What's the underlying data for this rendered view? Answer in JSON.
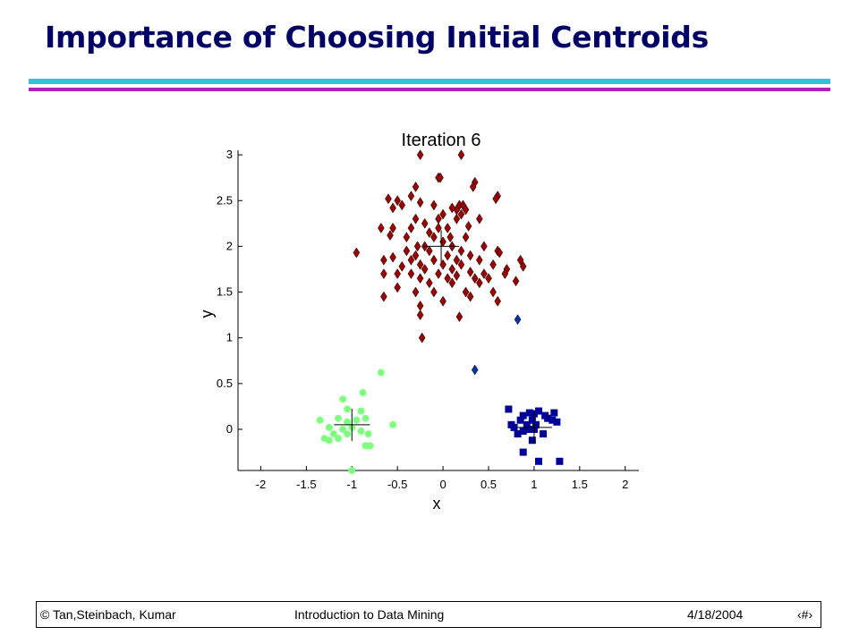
{
  "slide": {
    "title": "Importance of Choosing Initial Centroids"
  },
  "footer": {
    "left": "© Tan,Steinbach, Kumar",
    "center": "Introduction to Data Mining",
    "date": "4/18/2004",
    "page": "‹#›"
  },
  "colors": {
    "title": "#000066",
    "accent_bar_top": "#33c0e0",
    "accent_bar_bottom": "#b01ec0",
    "cluster_red": "#990000",
    "cluster_green": "#80ff80",
    "cluster_blue": "#000099"
  },
  "chart_data": {
    "type": "scatter",
    "title": "Iteration 6",
    "xlabel": "x",
    "ylabel": "y",
    "xlim": [
      -2.25,
      2.15
    ],
    "ylim": [
      -0.45,
      3.05
    ],
    "xticks": [
      -2,
      -1.5,
      -1,
      -0.5,
      0,
      0.5,
      1,
      1.5,
      2
    ],
    "xtick_labels": [
      "-2",
      "-1.5",
      "-1",
      "-0.5",
      "0",
      "0.5",
      "1",
      "1.5",
      "2"
    ],
    "yticks": [
      0,
      0.5,
      1,
      1.5,
      2,
      2.5,
      3
    ],
    "ytick_labels": [
      "0",
      "0.5",
      "1",
      "1.5",
      "2",
      "2.5",
      "3"
    ],
    "grid": false,
    "series": [
      {
        "marker": "diamond",
        "color": "#990000",
        "points": [
          [
            -0.25,
            3.0
          ],
          [
            0.2,
            3.0
          ],
          [
            -0.05,
            2.75
          ],
          [
            -0.03,
            2.75
          ],
          [
            0.35,
            2.7
          ],
          [
            0.33,
            2.65
          ],
          [
            -0.3,
            2.65
          ],
          [
            -0.35,
            2.55
          ],
          [
            -0.6,
            2.52
          ],
          [
            -0.5,
            2.5
          ],
          [
            -0.45,
            2.45
          ],
          [
            0.18,
            2.45
          ],
          [
            0.22,
            2.45
          ],
          [
            -0.55,
            2.42
          ],
          [
            -0.25,
            2.48
          ],
          [
            0.15,
            2.4
          ],
          [
            0.25,
            2.4
          ],
          [
            -0.1,
            2.45
          ],
          [
            0.1,
            2.42
          ],
          [
            0.6,
            2.55
          ],
          [
            0.58,
            2.52
          ],
          [
            -0.3,
            2.3
          ],
          [
            -0.05,
            2.3
          ],
          [
            0.0,
            2.35
          ],
          [
            0.2,
            2.35
          ],
          [
            0.4,
            2.3
          ],
          [
            -0.2,
            2.25
          ],
          [
            -0.55,
            2.2
          ],
          [
            -0.68,
            2.2
          ],
          [
            -0.15,
            2.15
          ],
          [
            -0.05,
            2.2
          ],
          [
            0.05,
            2.2
          ],
          [
            0.15,
            2.3
          ],
          [
            0.28,
            2.22
          ],
          [
            -0.35,
            2.2
          ],
          [
            -0.4,
            2.1
          ],
          [
            -0.1,
            2.1
          ],
          [
            0.08,
            2.1
          ],
          [
            0.25,
            2.1
          ],
          [
            -0.58,
            2.12
          ],
          [
            -0.28,
            2.0
          ],
          [
            -0.2,
            2.0
          ],
          [
            0.0,
            2.05
          ],
          [
            0.1,
            2.0
          ],
          [
            0.2,
            1.95
          ],
          [
            0.45,
            2.0
          ],
          [
            -0.4,
            1.95
          ],
          [
            -0.3,
            1.9
          ],
          [
            -0.15,
            1.95
          ],
          [
            0.05,
            1.9
          ],
          [
            0.3,
            1.9
          ],
          [
            0.6,
            1.95
          ],
          [
            0.62,
            1.93
          ],
          [
            -0.95,
            1.93
          ],
          [
            -0.55,
            1.88
          ],
          [
            -0.35,
            1.85
          ],
          [
            -0.1,
            1.85
          ],
          [
            0.15,
            1.85
          ],
          [
            0.4,
            1.85
          ],
          [
            0.85,
            1.85
          ],
          [
            -0.65,
            1.85
          ],
          [
            -0.25,
            1.8
          ],
          [
            0.0,
            1.8
          ],
          [
            0.2,
            1.8
          ],
          [
            0.55,
            1.8
          ],
          [
            0.7,
            1.75
          ],
          [
            0.88,
            1.78
          ],
          [
            -0.45,
            1.78
          ],
          [
            -0.2,
            1.75
          ],
          [
            0.1,
            1.75
          ],
          [
            0.3,
            1.72
          ],
          [
            0.68,
            1.7
          ],
          [
            -0.5,
            1.7
          ],
          [
            -0.35,
            1.7
          ],
          [
            -0.05,
            1.7
          ],
          [
            0.15,
            1.68
          ],
          [
            0.45,
            1.7
          ],
          [
            -0.65,
            1.7
          ],
          [
            -0.25,
            1.65
          ],
          [
            0.05,
            1.65
          ],
          [
            0.35,
            1.65
          ],
          [
            0.5,
            1.65
          ],
          [
            0.8,
            1.62
          ],
          [
            -0.15,
            1.6
          ],
          [
            0.1,
            1.6
          ],
          [
            0.4,
            1.6
          ],
          [
            -0.5,
            1.55
          ],
          [
            -0.3,
            1.5
          ],
          [
            -0.1,
            1.5
          ],
          [
            0.25,
            1.5
          ],
          [
            0.55,
            1.5
          ],
          [
            -0.65,
            1.45
          ],
          [
            0.3,
            1.45
          ],
          [
            -0.25,
            1.35
          ],
          [
            0.6,
            1.4
          ],
          [
            0.0,
            1.4
          ],
          [
            -0.25,
            1.25
          ],
          [
            0.18,
            1.23
          ],
          [
            -0.23,
            1.0
          ]
        ]
      },
      {
        "marker": "circle",
        "color": "#80ff80",
        "points": [
          [
            -0.68,
            0.62
          ],
          [
            -0.88,
            0.4
          ],
          [
            -1.1,
            0.33
          ],
          [
            -1.05,
            0.22
          ],
          [
            -0.9,
            0.2
          ],
          [
            -1.35,
            0.1
          ],
          [
            -1.15,
            0.12
          ],
          [
            -1.05,
            0.08
          ],
          [
            -0.95,
            0.1
          ],
          [
            -0.85,
            0.12
          ],
          [
            -1.25,
            0.02
          ],
          [
            -1.1,
            0.0
          ],
          [
            -1.0,
            0.02
          ],
          [
            -0.9,
            -0.02
          ],
          [
            -1.2,
            -0.05
          ],
          [
            -1.05,
            -0.05
          ],
          [
            -0.82,
            -0.05
          ],
          [
            -1.3,
            -0.1
          ],
          [
            -1.15,
            -0.1
          ],
          [
            -1.25,
            -0.12
          ],
          [
            -0.85,
            -0.18
          ],
          [
            -0.8,
            -0.18
          ],
          [
            -0.55,
            0.05
          ],
          [
            -1.0,
            -0.45
          ]
        ]
      },
      {
        "marker": "square",
        "color": "#000099",
        "points": [
          [
            0.72,
            0.22
          ],
          [
            1.05,
            0.2
          ],
          [
            0.95,
            0.18
          ],
          [
            1.0,
            0.17
          ],
          [
            1.22,
            0.18
          ],
          [
            0.88,
            0.15
          ],
          [
            1.12,
            0.15
          ],
          [
            1.15,
            0.12
          ],
          [
            1.2,
            0.1
          ],
          [
            0.85,
            0.1
          ],
          [
            0.98,
            0.1
          ],
          [
            1.25,
            0.08
          ],
          [
            0.75,
            0.05
          ],
          [
            0.92,
            0.05
          ],
          [
            1.02,
            0.05
          ],
          [
            0.78,
            0.02
          ],
          [
            0.95,
            0.0
          ],
          [
            1.0,
            0.0
          ],
          [
            0.88,
            -0.02
          ],
          [
            0.82,
            -0.05
          ],
          [
            1.1,
            -0.05
          ],
          [
            0.98,
            -0.12
          ],
          [
            0.88,
            -0.25
          ],
          [
            1.05,
            -0.35
          ],
          [
            1.28,
            -0.35
          ]
        ]
      },
      {
        "marker": "diamond",
        "color": "#0033aa",
        "points": [
          [
            0.82,
            1.2
          ],
          [
            0.35,
            0.65
          ]
        ]
      }
    ],
    "centroids": [
      [
        -0.02,
        2.0
      ],
      [
        -1.0,
        0.05
      ],
      [
        1.0,
        0.02
      ]
    ]
  }
}
